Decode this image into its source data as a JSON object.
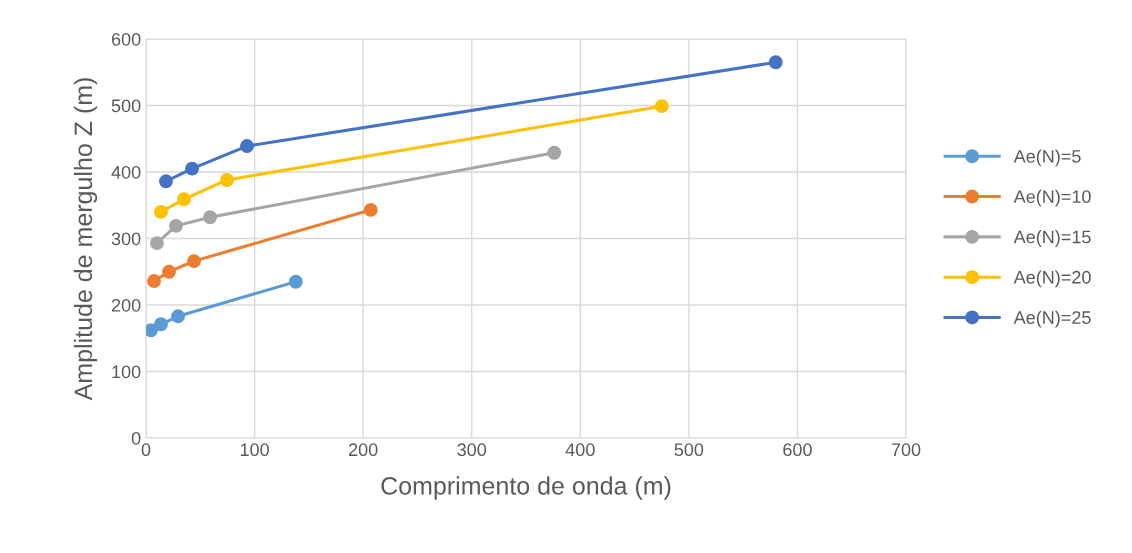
{
  "chart_data": {
    "type": "line",
    "xlabel": "Comprimento de onda (m)",
    "ylabel": "Amplitude de mergulho Z (m)",
    "xlim": [
      0,
      700
    ],
    "xticks": [
      0,
      100,
      200,
      300,
      400,
      500,
      600,
      700
    ],
    "ylim": [
      0,
      600
    ],
    "yticks": [
      0,
      100,
      200,
      300,
      400,
      500,
      600
    ],
    "grid": true,
    "legend": "right",
    "marker": "circle",
    "line_style": "solid",
    "series": [
      {
        "name": "Ae(N)=5",
        "color": "#5b9bd5",
        "x": [
          4.6,
          13.8,
          29.5,
          138
        ],
        "values": [
          162,
          171,
          183,
          235
        ]
      },
      {
        "name": "Ae(N)=10",
        "color": "#ed7d31",
        "x": [
          7.4,
          21.2,
          44.2,
          207
        ],
        "values": [
          236,
          250,
          266,
          343
        ]
      },
      {
        "name": "Ae(N)=15",
        "color": "#a5a5a5",
        "x": [
          10.1,
          27.6,
          59,
          376
        ],
        "values": [
          293,
          319,
          332,
          429
        ]
      },
      {
        "name": "Ae(N)=20",
        "color": "#ffc000",
        "x": [
          13.8,
          35,
          74.6,
          475
        ],
        "values": [
          340,
          359,
          388,
          499
        ]
      },
      {
        "name": "Ae(N)=25",
        "color": "#4472c4",
        "x": [
          18.4,
          42.4,
          93,
          580
        ],
        "values": [
          386,
          405,
          439,
          565
        ]
      }
    ]
  }
}
